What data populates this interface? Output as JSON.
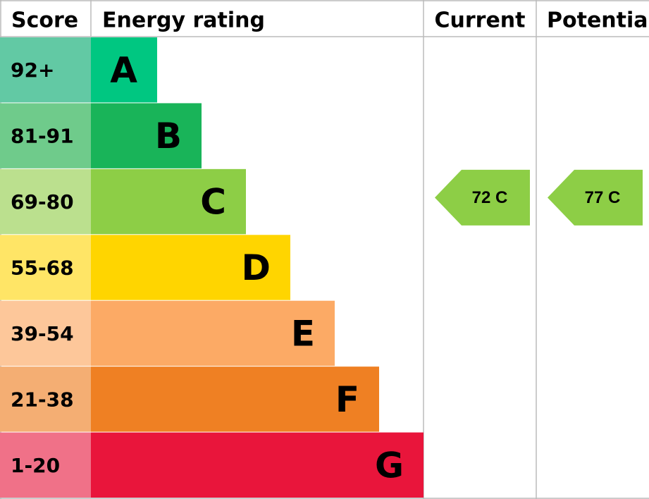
{
  "chart_data": {
    "type": "epc",
    "headers": {
      "score": "Score",
      "rating": "Energy rating",
      "current": "Current",
      "potential": "Potential"
    },
    "bands": [
      {
        "range": "92+",
        "letter": "A",
        "color": "#00c781",
        "score_color": "#62c9a4"
      },
      {
        "range": "81-91",
        "letter": "B",
        "color": "#19b459",
        "score_color": "#6fcb8b"
      },
      {
        "range": "69-80",
        "letter": "C",
        "color": "#8dce46",
        "score_color": "#bbe08e"
      },
      {
        "range": "55-68",
        "letter": "D",
        "color": "#ffd500",
        "score_color": "#ffe566"
      },
      {
        "range": "39-54",
        "letter": "E",
        "color": "#fcaa65",
        "score_color": "#fdc79a"
      },
      {
        "range": "21-38",
        "letter": "F",
        "color": "#ef8023",
        "score_color": "#f4ae73"
      },
      {
        "range": "1-20",
        "letter": "G",
        "color": "#e9153b",
        "score_color": "#f07188"
      }
    ],
    "current": {
      "value": 72,
      "label": "72 C"
    },
    "potential": {
      "value": 77,
      "label": "77 C"
    }
  }
}
